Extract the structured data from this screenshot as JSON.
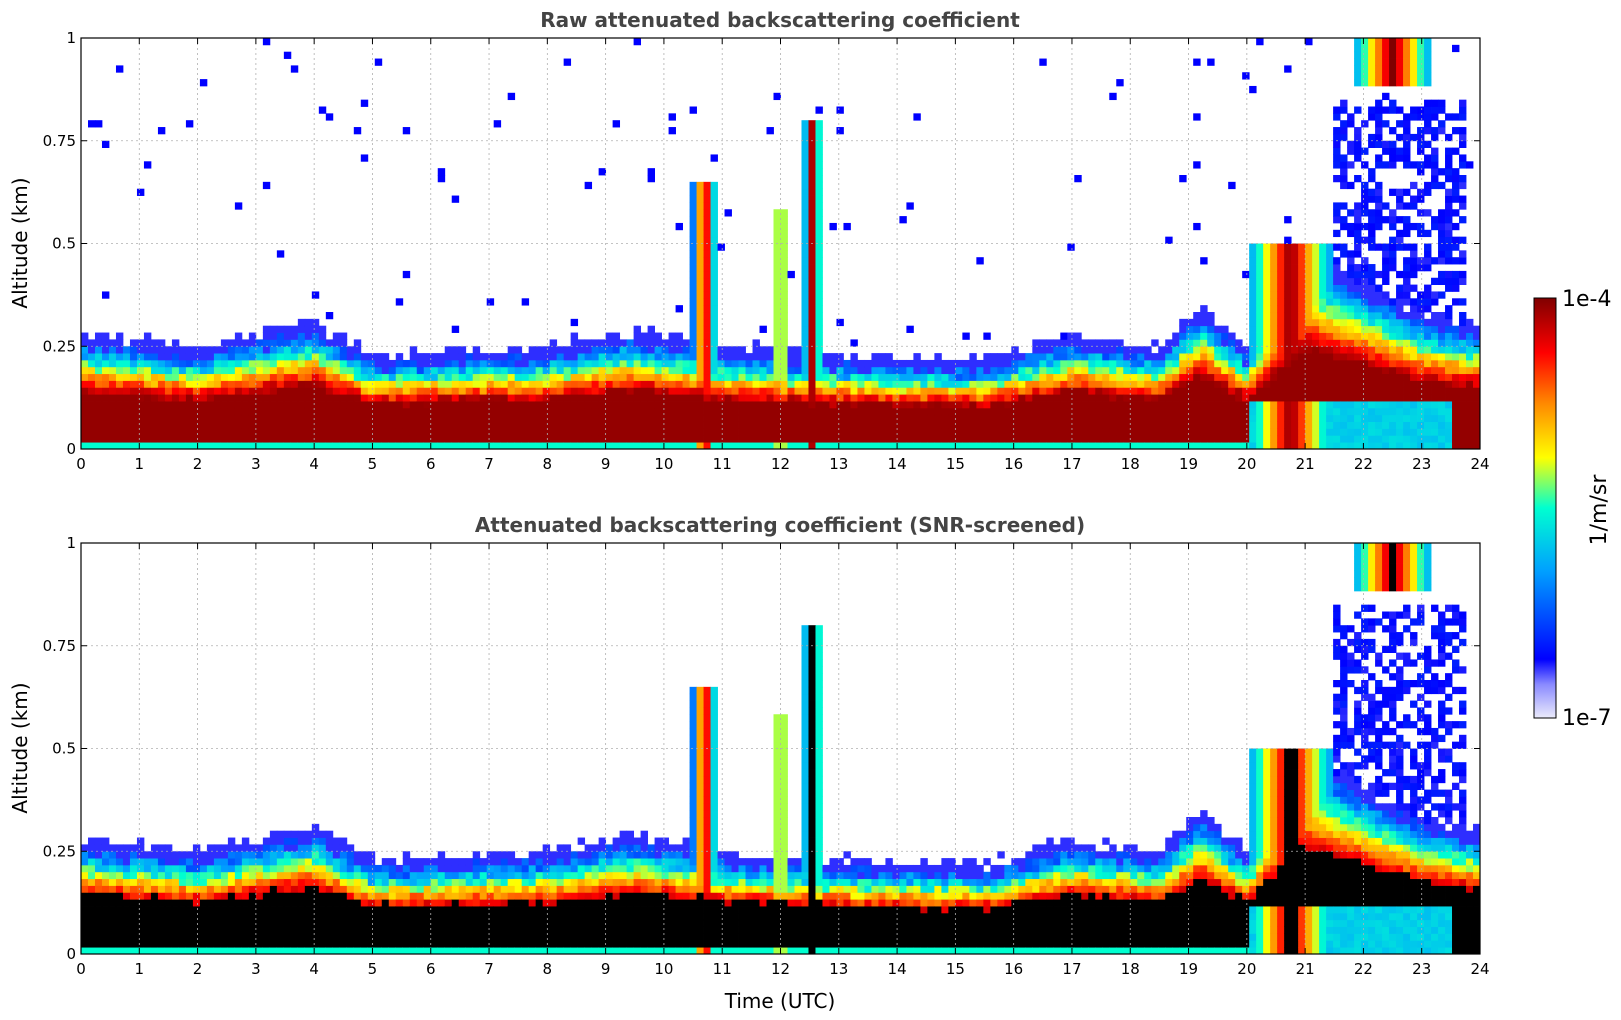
{
  "chart_data": [
    {
      "type": "heatmap",
      "title": "Raw attenuated backscattering coefficient",
      "xlabel": "",
      "ylabel": "Altitude (km)",
      "xlim": [
        0,
        24
      ],
      "ylim": [
        0,
        1
      ],
      "x_ticks": [
        "0",
        "1",
        "2",
        "3",
        "4",
        "5",
        "6",
        "7",
        "8",
        "9",
        "10",
        "11",
        "12",
        "13",
        "14",
        "15",
        "16",
        "17",
        "18",
        "19",
        "20",
        "21",
        "22",
        "23",
        "24"
      ],
      "y_ticks": [
        "0",
        "0.25",
        "0.5",
        "0.75",
        "1"
      ],
      "grid": true,
      "screened": false,
      "features": {
        "boundary_layer_top_km": [
          {
            "t": 0,
            "h": 0.25
          },
          {
            "t": 2,
            "h": 0.22
          },
          {
            "t": 4,
            "h": 0.28
          },
          {
            "t": 5,
            "h": 0.2
          },
          {
            "t": 8,
            "h": 0.22
          },
          {
            "t": 9.5,
            "h": 0.26
          },
          {
            "t": 11,
            "h": 0.22
          },
          {
            "t": 13,
            "h": 0.2
          },
          {
            "t": 15.5,
            "h": 0.19
          },
          {
            "t": 17,
            "h": 0.25
          },
          {
            "t": 18.5,
            "h": 0.22
          },
          {
            "t": 19.2,
            "h": 0.32
          },
          {
            "t": 20,
            "h": 0.22
          },
          {
            "t": 21,
            "h": 0.45
          },
          {
            "t": 23,
            "h": 0.3
          },
          {
            "t": 24,
            "h": 0.27
          }
        ],
        "plumes": [
          {
            "t_start": 10.5,
            "t_end": 10.9,
            "top_km": 0.65
          },
          {
            "t_start": 11.9,
            "t_end": 12.1,
            "top_km": 0.58
          },
          {
            "t_start": 12.4,
            "t_end": 12.7,
            "top_km": 0.8
          },
          {
            "t_start": 20.0,
            "t_end": 21.5,
            "top_km": 0.5
          },
          {
            "t_start": 21.8,
            "t_end": 23.2,
            "top_km": 1.0,
            "base_km": 0.88
          }
        ]
      }
    },
    {
      "type": "heatmap",
      "title": "Attenuated backscattering coefficient (SNR-screened)",
      "xlabel": "Time (UTC)",
      "ylabel": "Altitude (km)",
      "xlim": [
        0,
        24
      ],
      "ylim": [
        0,
        1
      ],
      "x_ticks": [
        "0",
        "1",
        "2",
        "3",
        "4",
        "5",
        "6",
        "7",
        "8",
        "9",
        "10",
        "11",
        "12",
        "13",
        "14",
        "15",
        "16",
        "17",
        "18",
        "19",
        "20",
        "21",
        "22",
        "23",
        "24"
      ],
      "y_ticks": [
        "0",
        "0.25",
        "0.5",
        "0.75",
        "1"
      ],
      "grid": true,
      "screened": true
    }
  ],
  "colorbar": {
    "label": "1/m/sr",
    "max_label": "1e-4",
    "min_label": "1e-7",
    "scale": "log",
    "colors": [
      "#e8e8f8",
      "#0000ff",
      "#00aaff",
      "#00ffcc",
      "#ffff00",
      "#ff8800",
      "#ff0000",
      "#8b0000"
    ]
  }
}
